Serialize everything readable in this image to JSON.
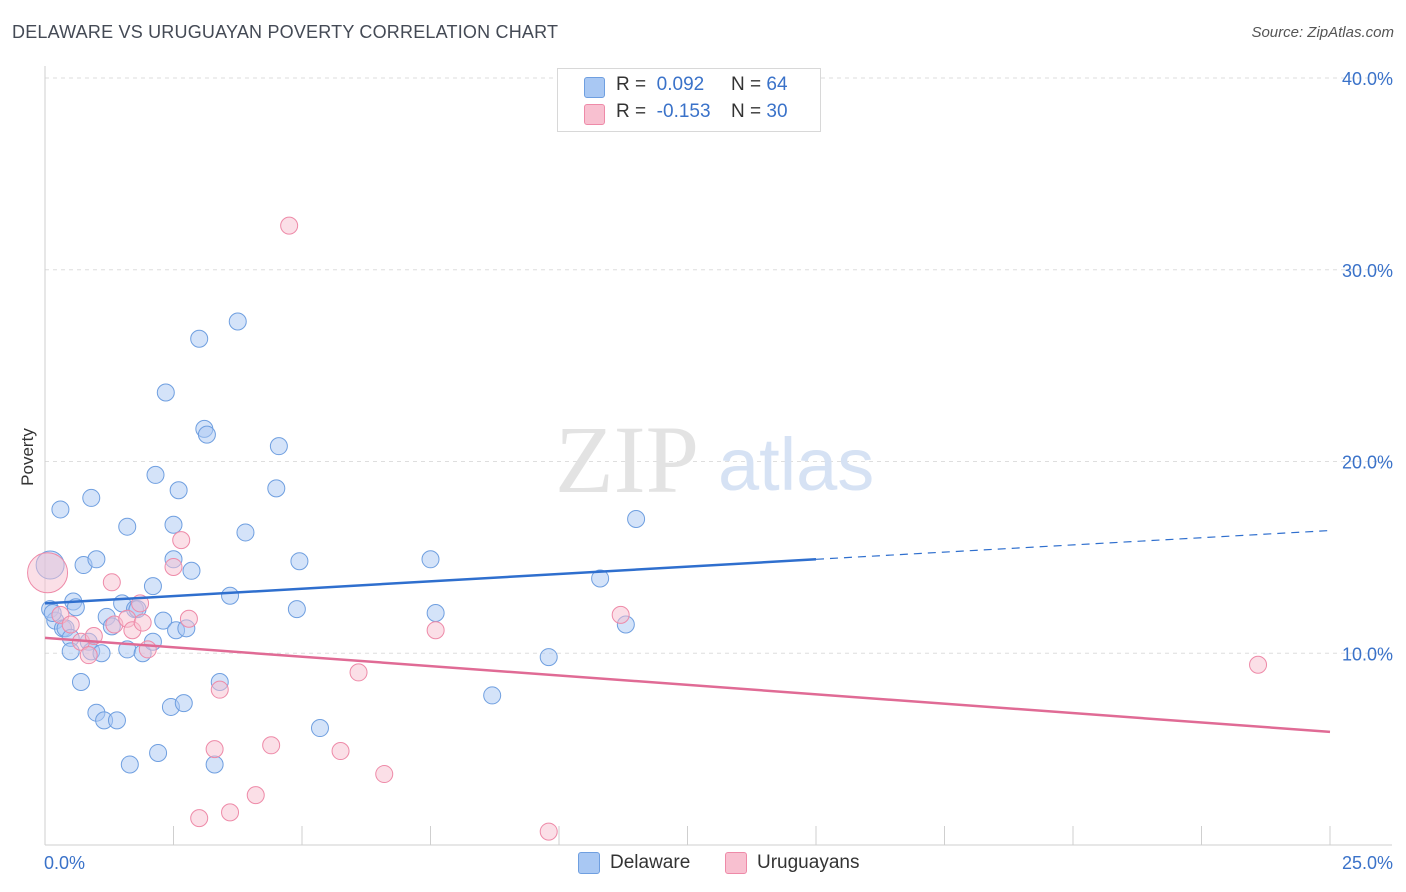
{
  "title": "DELAWARE VS URUGUAYAN POVERTY CORRELATION CHART",
  "source": "Source: ZipAtlas.com",
  "watermark": {
    "zip": "ZIP",
    "atlas": "atlas"
  },
  "legend": {
    "rows": [
      {
        "r_label": "R =",
        "r_value": "0.092",
        "n_label": "N =",
        "n_value": "64",
        "color": "#a9c8f3",
        "border": "#6f9fe0"
      },
      {
        "r_label": "R =",
        "r_value": "-0.153",
        "n_label": "N =",
        "n_value": "30",
        "color": "#f8c0d0",
        "border": "#ee8aa8"
      }
    ]
  },
  "bottom_legend": [
    {
      "label": "Delaware",
      "color": "#a9c8f3",
      "border": "#6f9fe0"
    },
    {
      "label": "Uruguayans",
      "color": "#f8c0d0",
      "border": "#ee8aa8"
    }
  ],
  "chart_data": {
    "type": "scatter",
    "title": "DELAWARE VS URUGUAYAN POVERTY CORRELATION CHART",
    "ylabel": "Poverty",
    "xlabel": "",
    "xlim": [
      0,
      25
    ],
    "ylim": [
      0,
      40
    ],
    "x_tick_labels": [
      "0.0%",
      "25.0%"
    ],
    "y_ticks": [
      10,
      20,
      30,
      40
    ],
    "y_tick_labels": [
      "10.0%",
      "20.0%",
      "30.0%",
      "40.0%"
    ],
    "grid": true,
    "legend_position": "top-center",
    "series": [
      {
        "name": "Delaware",
        "color": "#a9c8f3",
        "stroke": "#6f9fe0",
        "line_color": "#2f6fce",
        "trend": {
          "x0": 0,
          "y0": 12.6,
          "x1": 15,
          "y1": 14.9,
          "x_dash_end": 25,
          "y_dash_end": 16.4
        },
        "points": [
          [
            0.1,
            14.6
          ],
          [
            0.1,
            12.3
          ],
          [
            0.2,
            11.7
          ],
          [
            0.3,
            17.5
          ],
          [
            0.35,
            11.3
          ],
          [
            0.4,
            11.3
          ],
          [
            0.5,
            10.8
          ],
          [
            0.5,
            10.1
          ],
          [
            0.55,
            12.7
          ],
          [
            0.6,
            12.4
          ],
          [
            0.7,
            8.5
          ],
          [
            0.75,
            14.6
          ],
          [
            0.85,
            10.6
          ],
          [
            0.9,
            18.1
          ],
          [
            0.9,
            10.1
          ],
          [
            1.0,
            14.9
          ],
          [
            1.0,
            6.9
          ],
          [
            1.1,
            10.0
          ],
          [
            1.15,
            6.5
          ],
          [
            1.2,
            11.9
          ],
          [
            1.3,
            11.4
          ],
          [
            1.4,
            6.5
          ],
          [
            1.5,
            12.6
          ],
          [
            1.6,
            10.2
          ],
          [
            1.6,
            16.6
          ],
          [
            1.65,
            4.2
          ],
          [
            1.75,
            12.3
          ],
          [
            1.8,
            12.3
          ],
          [
            1.9,
            10.0
          ],
          [
            2.1,
            10.6
          ],
          [
            2.1,
            13.5
          ],
          [
            2.15,
            19.3
          ],
          [
            2.2,
            4.8
          ],
          [
            2.3,
            11.7
          ],
          [
            2.35,
            23.6
          ],
          [
            2.45,
            7.2
          ],
          [
            2.5,
            14.9
          ],
          [
            2.5,
            16.7
          ],
          [
            2.55,
            11.2
          ],
          [
            2.6,
            18.5
          ],
          [
            2.7,
            7.4
          ],
          [
            2.75,
            11.3
          ],
          [
            2.85,
            14.3
          ],
          [
            3.0,
            26.4
          ],
          [
            3.1,
            21.7
          ],
          [
            3.15,
            21.4
          ],
          [
            3.3,
            4.2
          ],
          [
            3.4,
            8.5
          ],
          [
            3.6,
            13.0
          ],
          [
            3.75,
            27.3
          ],
          [
            3.9,
            16.3
          ],
          [
            4.5,
            18.6
          ],
          [
            4.55,
            20.8
          ],
          [
            4.9,
            12.3
          ],
          [
            4.95,
            14.8
          ],
          [
            5.35,
            6.1
          ],
          [
            7.5,
            14.9
          ],
          [
            7.6,
            12.1
          ],
          [
            8.7,
            7.8
          ],
          [
            9.8,
            9.8
          ],
          [
            10.8,
            13.9
          ],
          [
            11.3,
            11.5
          ],
          [
            11.5,
            17.0
          ],
          [
            0.15,
            12.1
          ]
        ]
      },
      {
        "name": "Uruguayans",
        "color": "#f8c0d0",
        "stroke": "#ee8aa8",
        "line_color": "#e06b95",
        "trend": {
          "x0": 0,
          "y0": 10.8,
          "x1": 25,
          "y1": 5.9
        },
        "points": [
          [
            0.05,
            14.2
          ],
          [
            0.3,
            12.0
          ],
          [
            0.5,
            11.5
          ],
          [
            0.7,
            10.6
          ],
          [
            0.85,
            9.9
          ],
          [
            0.95,
            10.9
          ],
          [
            1.3,
            13.7
          ],
          [
            1.35,
            11.5
          ],
          [
            1.6,
            11.8
          ],
          [
            1.7,
            11.2
          ],
          [
            1.85,
            12.6
          ],
          [
            1.9,
            11.6
          ],
          [
            2.0,
            10.2
          ],
          [
            2.5,
            14.5
          ],
          [
            2.65,
            15.9
          ],
          [
            2.8,
            11.8
          ],
          [
            3.0,
            1.4
          ],
          [
            3.3,
            5.0
          ],
          [
            3.4,
            8.1
          ],
          [
            3.6,
            1.7
          ],
          [
            4.1,
            2.6
          ],
          [
            4.4,
            5.2
          ],
          [
            4.75,
            32.3
          ],
          [
            5.75,
            4.9
          ],
          [
            6.1,
            9.0
          ],
          [
            6.6,
            3.7
          ],
          [
            7.6,
            11.2
          ],
          [
            9.8,
            0.7
          ],
          [
            11.2,
            12.0
          ],
          [
            23.6,
            9.4
          ]
        ]
      }
    ]
  }
}
